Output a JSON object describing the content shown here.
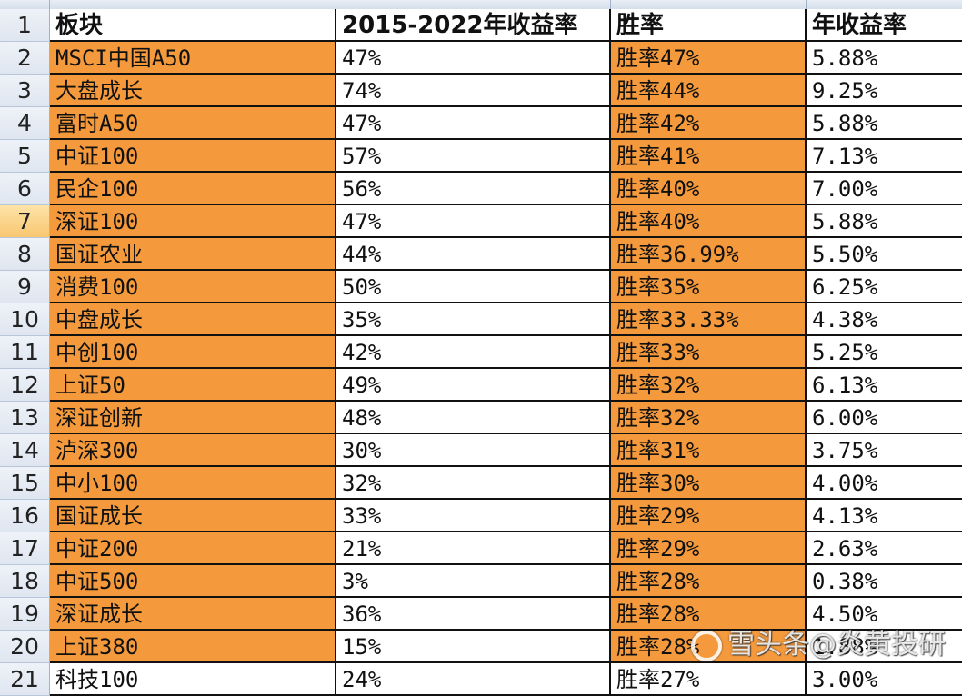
{
  "sheet": {
    "header": {
      "row_number": "1",
      "columns": [
        "板块",
        "2015-2022年收益率",
        "胜率",
        "年收益率"
      ]
    },
    "rows": [
      {
        "row": "2",
        "sector": "MSCI中国A50",
        "return_2015_2022": "47%",
        "win_rate": "胜率47%",
        "annual_return": "5.88%"
      },
      {
        "row": "3",
        "sector": "大盘成长",
        "return_2015_2022": "74%",
        "win_rate": "胜率44%",
        "annual_return": "9.25%"
      },
      {
        "row": "4",
        "sector": "富时A50",
        "return_2015_2022": "47%",
        "win_rate": "胜率42%",
        "annual_return": "5.88%"
      },
      {
        "row": "5",
        "sector": "中证100",
        "return_2015_2022": "57%",
        "win_rate": "胜率41%",
        "annual_return": "7.13%"
      },
      {
        "row": "6",
        "sector": "民企100",
        "return_2015_2022": "56%",
        "win_rate": "胜率40%",
        "annual_return": "7.00%"
      },
      {
        "row": "7",
        "sector": "深证100",
        "return_2015_2022": "47%",
        "win_rate": "胜率40%",
        "annual_return": "5.88%",
        "selected": true
      },
      {
        "row": "8",
        "sector": "国证农业",
        "return_2015_2022": "44%",
        "win_rate": "胜率36.99%",
        "annual_return": "5.50%"
      },
      {
        "row": "9",
        "sector": "消费100",
        "return_2015_2022": "50%",
        "win_rate": "胜率35%",
        "annual_return": "6.25%"
      },
      {
        "row": "10",
        "sector": "中盘成长",
        "return_2015_2022": "35%",
        "win_rate": "胜率33.33%",
        "annual_return": "4.38%"
      },
      {
        "row": "11",
        "sector": "中创100",
        "return_2015_2022": "42%",
        "win_rate": "胜率33%",
        "annual_return": "5.25%"
      },
      {
        "row": "12",
        "sector": "上证50",
        "return_2015_2022": "49%",
        "win_rate": "胜率32%",
        "annual_return": "6.13%"
      },
      {
        "row": "13",
        "sector": "深证创新",
        "return_2015_2022": "48%",
        "win_rate": "胜率32%",
        "annual_return": "6.00%"
      },
      {
        "row": "14",
        "sector": "泸深300",
        "return_2015_2022": "30%",
        "win_rate": "胜率31%",
        "annual_return": "3.75%"
      },
      {
        "row": "15",
        "sector": "中小100",
        "return_2015_2022": "32%",
        "win_rate": "胜率30%",
        "annual_return": "4.00%"
      },
      {
        "row": "16",
        "sector": "国证成长",
        "return_2015_2022": "33%",
        "win_rate": "胜率29%",
        "annual_return": "4.13%"
      },
      {
        "row": "17",
        "sector": "中证200",
        "return_2015_2022": "21%",
        "win_rate": "胜率29%",
        "annual_return": "2.63%"
      },
      {
        "row": "18",
        "sector": "中证500",
        "return_2015_2022": "3%",
        "win_rate": "胜率28%",
        "annual_return": "0.38%"
      },
      {
        "row": "19",
        "sector": "深证成长",
        "return_2015_2022": "36%",
        "win_rate": "胜率28%",
        "annual_return": "4.50%"
      },
      {
        "row": "20",
        "sector": "上证380",
        "return_2015_2022": "15%",
        "win_rate": "胜率28%",
        "annual_return": "1.88%"
      },
      {
        "row": "21",
        "sector": "科技100",
        "return_2015_2022": "24%",
        "win_rate": "胜率27%",
        "annual_return": "3.00%"
      }
    ]
  },
  "colors": {
    "highlight_orange": "#f59a3c",
    "header_bg": "#ffffff",
    "row_header_bg": "#dfe6f0",
    "selected_row_header": "#f8c770"
  },
  "watermark": {
    "text": "雪头条@炎黄投研"
  }
}
